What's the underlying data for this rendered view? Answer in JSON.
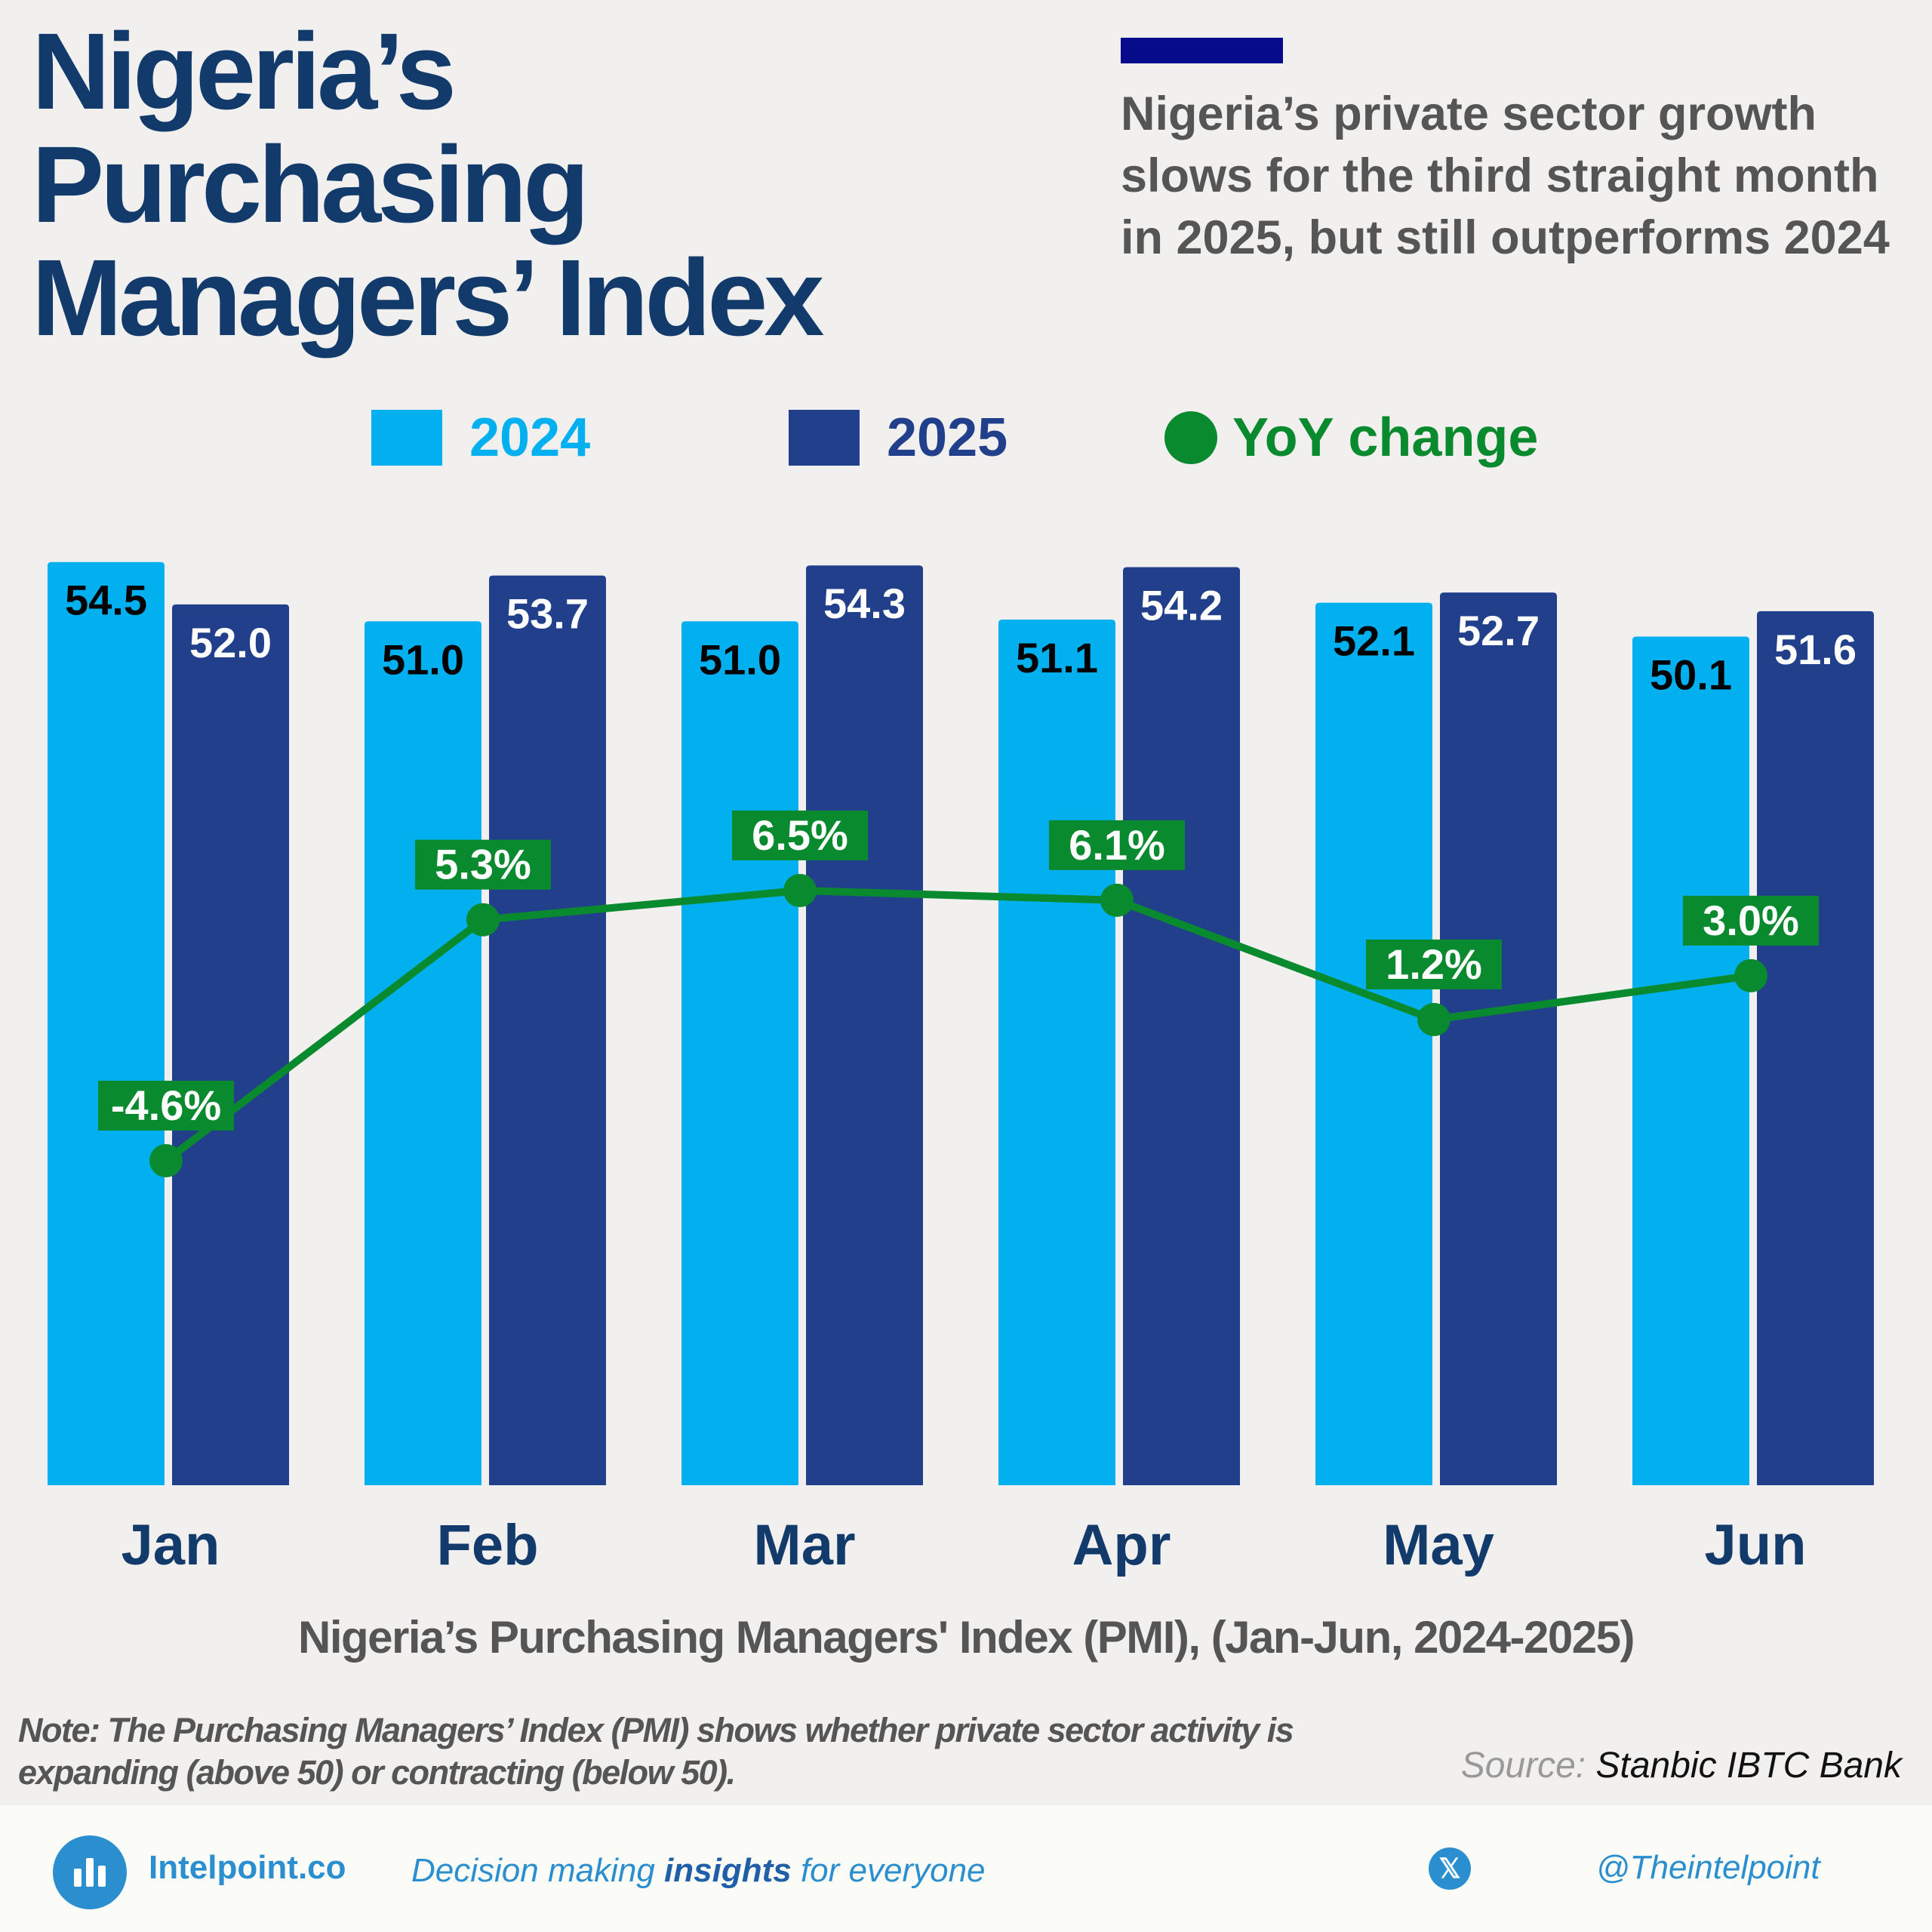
{
  "header": {
    "title_lines": [
      "Nigeria’s",
      "Purchasing",
      "Managers’ Index"
    ],
    "subtitle": "Nigeria’s private sector growth slows for the third straight month in 2025, but still outperforms 2024",
    "accent_color": "#050b8a"
  },
  "legend": {
    "items": [
      {
        "label": "2024",
        "color": "#02b0f0",
        "shape": "square"
      },
      {
        "label": "2025",
        "color": "#223f8c",
        "shape": "square"
      },
      {
        "label": "YoY change",
        "color": "#0a8a2e",
        "shape": "circle"
      }
    ]
  },
  "chart_data": {
    "type": "bar",
    "categories": [
      "Jan",
      "Feb",
      "Mar",
      "Apr",
      "May",
      "Jun"
    ],
    "series": [
      {
        "name": "2024",
        "type": "bar",
        "color": "#02b0f0",
        "values": [
          54.5,
          51.0,
          51.0,
          51.1,
          52.1,
          50.1
        ],
        "labels": [
          "54.5",
          "51.0",
          "51.0",
          "51.1",
          "52.1",
          "50.1"
        ]
      },
      {
        "name": "2025",
        "type": "bar",
        "color": "#223f8c",
        "values": [
          52.0,
          53.7,
          54.3,
          54.2,
          52.7,
          51.6
        ],
        "labels": [
          "52.0",
          "53.7",
          "54.3",
          "54.2",
          "52.7",
          "51.6"
        ]
      },
      {
        "name": "YoY change",
        "type": "line",
        "color": "#0a8a2e",
        "values": [
          -4.6,
          5.3,
          6.5,
          6.1,
          1.2,
          3.0
        ],
        "labels": [
          "-4.6%",
          "5.3%",
          "6.5%",
          "6.1%",
          "1.2%",
          "3.0%"
        ]
      }
    ],
    "ylim": [
      0,
      55
    ],
    "yoy_ylim": [
      -12,
      15
    ],
    "grid": false,
    "legend_position": "top",
    "caption": "Nigeria’s Purchasing Managers' Index (PMI), (Jan-Jun, 2024-2025)"
  },
  "note": "Note: The Purchasing Managers’ Index (PMI) shows whether private sector activity is expanding (above 50) or contracting (below 50).",
  "source": {
    "label": "Source:",
    "value": "Stanbic IBTC Bank"
  },
  "footer": {
    "brand": "Intelpoint.co",
    "tagline_pre": "Decision making ",
    "tagline_bold": "insights",
    "tagline_post": " for everyone",
    "social_icon": "x-logo-icon",
    "x_glyph": "𝕏",
    "handle": "@Theintelpoint"
  }
}
